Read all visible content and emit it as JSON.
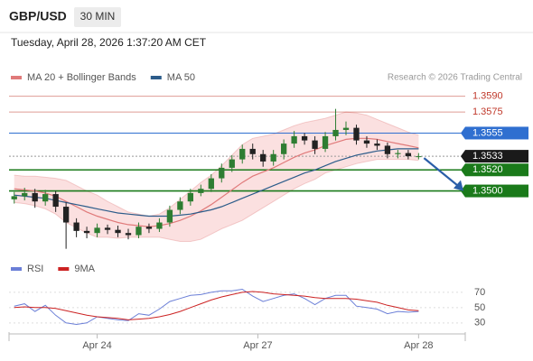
{
  "chart_data": {
    "type": "candlestick",
    "title": "GBP/USD",
    "timeframe": "30 MIN",
    "subtitle": "Tuesday, April 28, 2026 1:37:20 AM CET",
    "credit": "Research © 2026 Trading Central",
    "xlim": [
      -0.5,
      43.5
    ],
    "xticks": [
      {
        "value": 8,
        "label": "Apr 24"
      },
      {
        "value": 23.5,
        "label": "Apr 27"
      },
      {
        "value": 39,
        "label": "Apr 28"
      }
    ],
    "ylim": [
      1.3437,
      1.36
    ],
    "up_color": "#2e7d32",
    "down_color": "#222222",
    "open": [
      1.3492,
      1.3495,
      1.3498,
      1.349,
      1.3497,
      1.3485,
      1.347,
      1.3462,
      1.346,
      1.3465,
      1.3463,
      1.346,
      1.3458,
      1.3466,
      1.3464,
      1.347,
      1.3482,
      1.349,
      1.3498,
      1.3502,
      1.3512,
      1.3522,
      1.353,
      1.354,
      1.3535,
      1.3528,
      1.3535,
      1.3545,
      1.3552,
      1.3548,
      1.354,
      1.3552,
      1.3558,
      1.356,
      1.3548,
      1.3545,
      1.3543,
      1.3535,
      1.3536,
      1.3533
    ],
    "high": [
      1.3499,
      1.3503,
      1.3502,
      1.3501,
      1.35,
      1.3489,
      1.3474,
      1.3466,
      1.3469,
      1.3468,
      1.3467,
      1.3464,
      1.347,
      1.3469,
      1.3474,
      1.3486,
      1.3494,
      1.3502,
      1.3506,
      1.3516,
      1.3526,
      1.3534,
      1.3544,
      1.3545,
      1.3539,
      1.3539,
      1.3549,
      1.3557,
      1.3555,
      1.3552,
      1.3556,
      1.3578,
      1.3566,
      1.3563,
      1.3552,
      1.3549,
      1.3546,
      1.3539,
      1.3539,
      1.3536
    ],
    "low": [
      1.3488,
      1.3491,
      1.3484,
      1.3486,
      1.348,
      1.3445,
      1.3456,
      1.3455,
      1.3456,
      1.3459,
      1.3456,
      1.3454,
      1.3455,
      1.346,
      1.3461,
      1.3466,
      1.3478,
      1.3486,
      1.3495,
      1.3499,
      1.3508,
      1.3518,
      1.3526,
      1.353,
      1.3523,
      1.3524,
      1.353,
      1.3541,
      1.3544,
      1.3535,
      1.3537,
      1.3548,
      1.3553,
      1.3544,
      1.3541,
      1.3539,
      1.3531,
      1.3531,
      1.353,
      1.353
    ],
    "close": [
      1.3495,
      1.3498,
      1.349,
      1.3497,
      1.3485,
      1.347,
      1.3462,
      1.346,
      1.3465,
      1.3463,
      1.346,
      1.3458,
      1.3466,
      1.3464,
      1.347,
      1.3482,
      1.349,
      1.3498,
      1.3502,
      1.3512,
      1.3522,
      1.353,
      1.354,
      1.3535,
      1.3528,
      1.3535,
      1.3545,
      1.3552,
      1.3548,
      1.354,
      1.3552,
      1.3558,
      1.356,
      1.3548,
      1.3545,
      1.3543,
      1.3535,
      1.3536,
      1.3533,
      1.3533
    ],
    "overlays": [
      {
        "name": "MA 20 + Bollinger Bands",
        "color": "#e07a7a",
        "band_color": "#f9d3d3",
        "values": [
          1.3502,
          1.3501,
          1.35,
          1.3498,
          1.3495,
          1.349,
          1.3485,
          1.348,
          1.3476,
          1.3473,
          1.347,
          1.3468,
          1.3467,
          1.3466,
          1.3467,
          1.3469,
          1.3472,
          1.3476,
          1.3481,
          1.3487,
          1.3494,
          1.3501,
          1.3508,
          1.3514,
          1.3518,
          1.3522,
          1.3527,
          1.3532,
          1.3536,
          1.3539,
          1.3543,
          1.3546,
          1.3549,
          1.355,
          1.355,
          1.3549,
          1.3547,
          1.3545,
          1.3543,
          1.3541
        ],
        "upper": [
          1.3515,
          1.3514,
          1.3514,
          1.3513,
          1.3512,
          1.351,
          1.3505,
          1.35,
          1.3496,
          1.349,
          1.3485,
          1.348,
          1.3478,
          1.3476,
          1.3478,
          1.3484,
          1.3492,
          1.35,
          1.3508,
          1.3515,
          1.3524,
          1.3534,
          1.3544,
          1.355,
          1.3552,
          1.3554,
          1.3558,
          1.3562,
          1.3565,
          1.3567,
          1.3569,
          1.3572,
          1.3575,
          1.3574,
          1.3572,
          1.3568,
          1.3564,
          1.356,
          1.3556,
          1.3553
        ],
        "lower": [
          1.3489,
          1.3488,
          1.3486,
          1.3483,
          1.3478,
          1.347,
          1.3465,
          1.346,
          1.3456,
          1.3456,
          1.3455,
          1.3456,
          1.3456,
          1.3456,
          1.3456,
          1.3454,
          1.3452,
          1.3452,
          1.3454,
          1.3459,
          1.3464,
          1.3468,
          1.3472,
          1.3478,
          1.3484,
          1.349,
          1.3496,
          1.3502,
          1.3507,
          1.3511,
          1.3517,
          1.352,
          1.3523,
          1.3526,
          1.3528,
          1.353,
          1.353,
          1.353,
          1.353,
          1.3529
        ]
      },
      {
        "name": "MA 50",
        "color": "#2c5c8a",
        "values": [
          1.3496,
          1.3495,
          1.3494,
          1.3493,
          1.3491,
          1.3489,
          1.3487,
          1.3485,
          1.3483,
          1.3481,
          1.3479,
          1.3478,
          1.3477,
          1.3476,
          1.3476,
          1.3476,
          1.3477,
          1.3478,
          1.348,
          1.3482,
          1.3485,
          1.3489,
          1.3493,
          1.3497,
          1.3501,
          1.3505,
          1.3509,
          1.3513,
          1.3517,
          1.352,
          1.3524,
          1.3528,
          1.3531,
          1.3534,
          1.3536,
          1.3538,
          1.3539,
          1.354,
          1.354,
          1.354
        ]
      }
    ],
    "levels": [
      {
        "value": 1.359,
        "label": "1.3590",
        "color": "#c0392b",
        "boxed": false
      },
      {
        "value": 1.3575,
        "label": "1.3575",
        "color": "#c0392b",
        "boxed": false
      },
      {
        "value": 1.3555,
        "label": "1.3555",
        "color": "#2f6fd0",
        "boxed": true
      },
      {
        "value": 1.3533,
        "label": "1.3533",
        "color": "#1a1a1a",
        "boxed": true
      },
      {
        "value": 1.352,
        "label": "1.3520",
        "color": "#1a7a1a",
        "boxed": true
      },
      {
        "value": 1.35,
        "label": "1.3500",
        "color": "#1a7a1a",
        "boxed": true
      }
    ],
    "rsi": {
      "ylim": [
        18,
        84
      ],
      "yticks": [
        30,
        50,
        70
      ],
      "series": [
        {
          "name": "RSI",
          "color": "#6b7fd7",
          "values": [
            52,
            55,
            45,
            53,
            40,
            30,
            28,
            30,
            38,
            36,
            34,
            33,
            42,
            40,
            48,
            58,
            62,
            66,
            67,
            70,
            72,
            72,
            74,
            65,
            58,
            62,
            66,
            68,
            62,
            54,
            62,
            66,
            66,
            52,
            50,
            48,
            42,
            45,
            44,
            45
          ]
        },
        {
          "name": "9MA",
          "color": "#cc2222",
          "values": [
            50,
            51,
            50,
            50,
            49,
            46,
            43,
            40,
            38,
            37,
            36,
            34,
            35,
            36,
            38,
            41,
            45,
            50,
            55,
            60,
            64,
            67,
            70,
            71,
            70,
            68,
            67,
            66,
            65,
            63,
            62,
            62,
            62,
            61,
            59,
            57,
            53,
            50,
            47,
            46
          ]
        }
      ]
    }
  }
}
